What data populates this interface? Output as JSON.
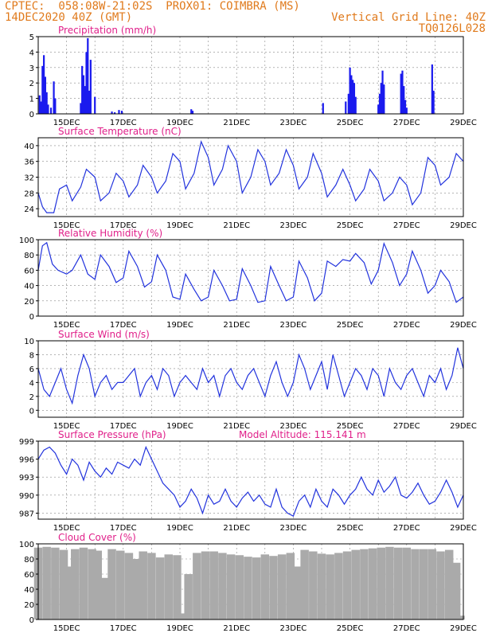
{
  "header": {
    "line1_left": "CPTEC:  058:08W-21:02S  PROX01: COIMBRA (MS)",
    "line2_left": "14DEC2020 40Z (GMT)",
    "line2_right": "Vertical Grid Line: 40Z",
    "line3_right": "TQ0126L028"
  },
  "colors": {
    "header_text": "#e07a1c",
    "panel_title": "#e0208a",
    "series_line": "#2233dd",
    "bars": "#1a1aee",
    "cloud_bars": "#aaaaaa"
  },
  "x_axis": {
    "tick_labels": [
      "15DEC",
      "17DEC",
      "19DEC",
      "21DEC",
      "23DEC",
      "25DEC",
      "27DEC",
      "29DEC"
    ],
    "tick_days": [
      15,
      17,
      19,
      21,
      23,
      25,
      27,
      29
    ],
    "x_range_days": [
      14.0,
      29.0
    ]
  },
  "chart_data": [
    {
      "type": "bar",
      "title": "Precipitation (mm/h)",
      "ylim": [
        0,
        5
      ],
      "yticks": [
        "0",
        "1",
        "2",
        "3",
        "4",
        "5"
      ],
      "points": [
        [
          14.05,
          1.2
        ],
        [
          14.1,
          0.8
        ],
        [
          14.15,
          3.1
        ],
        [
          14.2,
          3.8
        ],
        [
          14.25,
          2.4
        ],
        [
          14.3,
          1.4
        ],
        [
          14.35,
          0.6
        ],
        [
          14.45,
          0.4
        ],
        [
          14.55,
          2.1
        ],
        [
          14.6,
          1.0
        ],
        [
          15.5,
          0.7
        ],
        [
          15.55,
          3.1
        ],
        [
          15.6,
          2.5
        ],
        [
          15.65,
          1.8
        ],
        [
          15.7,
          4.0
        ],
        [
          15.75,
          4.9
        ],
        [
          15.8,
          1.5
        ],
        [
          15.85,
          3.5
        ],
        [
          16.0,
          1.1
        ],
        [
          16.6,
          0.15
        ],
        [
          16.7,
          0.1
        ],
        [
          16.85,
          0.25
        ],
        [
          16.95,
          0.2
        ],
        [
          19.4,
          0.3
        ],
        [
          19.45,
          0.2
        ],
        [
          24.05,
          0.7
        ],
        [
          24.85,
          0.8
        ],
        [
          24.95,
          1.3
        ],
        [
          25.0,
          3.0
        ],
        [
          25.05,
          2.5
        ],
        [
          25.1,
          2.2
        ],
        [
          25.15,
          2.0
        ],
        [
          25.2,
          1.1
        ],
        [
          26.0,
          0.6
        ],
        [
          26.05,
          1.3
        ],
        [
          26.1,
          2.0
        ],
        [
          26.15,
          2.8
        ],
        [
          26.2,
          1.9
        ],
        [
          26.8,
          2.6
        ],
        [
          26.85,
          2.8
        ],
        [
          26.9,
          1.8
        ],
        [
          26.95,
          0.9
        ],
        [
          27.0,
          0.4
        ],
        [
          27.9,
          3.2
        ],
        [
          27.95,
          1.5
        ]
      ]
    },
    {
      "type": "line",
      "title": "Surface Temperature (nC)",
      "ylim": [
        22,
        42
      ],
      "yticks": [
        "24",
        "28",
        "32",
        "36",
        "40"
      ],
      "x": [
        14.0,
        14.15,
        14.3,
        14.55,
        14.75,
        15.0,
        15.2,
        15.5,
        15.7,
        16.0,
        16.2,
        16.5,
        16.75,
        17.0,
        17.2,
        17.5,
        17.7,
        18.0,
        18.2,
        18.5,
        18.75,
        19.0,
        19.2,
        19.5,
        19.75,
        20.0,
        20.2,
        20.5,
        20.7,
        21.0,
        21.2,
        21.5,
        21.75,
        22.0,
        22.2,
        22.5,
        22.75,
        23.0,
        23.2,
        23.5,
        23.7,
        24.0,
        24.2,
        24.5,
        24.75,
        25.0,
        25.2,
        25.5,
        25.7,
        26.0,
        26.2,
        26.5,
        26.75,
        27.0,
        27.2,
        27.5,
        27.75,
        28.0,
        28.2,
        28.5,
        28.75,
        29.0
      ],
      "y": [
        28,
        24.5,
        23,
        23,
        29,
        30,
        26,
        29.5,
        34,
        32,
        26,
        28,
        33,
        31,
        27,
        30,
        35,
        32,
        28,
        31,
        38,
        36,
        29,
        33,
        41,
        37,
        30,
        34,
        40,
        36,
        28,
        32,
        39,
        36,
        30,
        33,
        39,
        35,
        29,
        32,
        38,
        33,
        27,
        30,
        34,
        30,
        26,
        29,
        34,
        31,
        26,
        28,
        32,
        30,
        25,
        28,
        37,
        35,
        30,
        32,
        38,
        36
      ]
    },
    {
      "type": "line",
      "title": "Relative Humidity (%)",
      "ylim": [
        0,
        100
      ],
      "yticks": [
        "0",
        "20",
        "40",
        "60",
        "80",
        "100"
      ],
      "x": [
        14.0,
        14.15,
        14.3,
        14.5,
        14.7,
        15.0,
        15.2,
        15.5,
        15.75,
        16.0,
        16.2,
        16.5,
        16.75,
        17.0,
        17.2,
        17.5,
        17.75,
        18.0,
        18.2,
        18.5,
        18.75,
        19.0,
        19.2,
        19.5,
        19.75,
        20.0,
        20.2,
        20.5,
        20.75,
        21.0,
        21.2,
        21.5,
        21.75,
        22.0,
        22.2,
        22.5,
        22.75,
        23.0,
        23.2,
        23.5,
        23.75,
        24.0,
        24.2,
        24.5,
        24.75,
        25.0,
        25.2,
        25.5,
        25.75,
        26.0,
        26.2,
        26.5,
        26.75,
        27.0,
        27.2,
        27.5,
        27.75,
        28.0,
        28.2,
        28.5,
        28.75,
        29.0
      ],
      "y": [
        60,
        92,
        96,
        68,
        60,
        55,
        60,
        80,
        55,
        48,
        80,
        65,
        44,
        50,
        85,
        65,
        38,
        45,
        80,
        60,
        25,
        22,
        55,
        35,
        20,
        25,
        60,
        40,
        20,
        22,
        62,
        40,
        18,
        20,
        65,
        40,
        20,
        25,
        72,
        50,
        20,
        30,
        72,
        65,
        74,
        72,
        82,
        70,
        42,
        60,
        95,
        70,
        40,
        55,
        85,
        60,
        30,
        40,
        60,
        45,
        18,
        25
      ]
    },
    {
      "type": "line",
      "title": "Surface Wind (m/s)",
      "ylim": [
        -1,
        10
      ],
      "yticks": [
        "0",
        "2",
        "4",
        "6",
        "8",
        "10"
      ],
      "x": [
        14.0,
        14.2,
        14.4,
        14.6,
        14.8,
        15.0,
        15.2,
        15.4,
        15.6,
        15.8,
        16.0,
        16.2,
        16.4,
        16.6,
        16.8,
        17.0,
        17.2,
        17.4,
        17.6,
        17.8,
        18.0,
        18.2,
        18.4,
        18.6,
        18.8,
        19.0,
        19.2,
        19.4,
        19.6,
        19.8,
        20.0,
        20.2,
        20.4,
        20.6,
        20.8,
        21.0,
        21.2,
        21.4,
        21.6,
        21.8,
        22.0,
        22.2,
        22.4,
        22.6,
        22.8,
        23.0,
        23.2,
        23.4,
        23.6,
        23.8,
        24.0,
        24.2,
        24.4,
        24.6,
        24.8,
        25.0,
        25.2,
        25.4,
        25.6,
        25.8,
        26.0,
        26.2,
        26.4,
        26.6,
        26.8,
        27.0,
        27.2,
        27.4,
        27.6,
        27.8,
        28.0,
        28.2,
        28.4,
        28.6,
        28.8,
        29.0
      ],
      "y": [
        6,
        3,
        2,
        4,
        6,
        3,
        1,
        5,
        8,
        6,
        2,
        4,
        5,
        3,
        4,
        4,
        5,
        6,
        2,
        4,
        5,
        3,
        6,
        5,
        2,
        4,
        5,
        4,
        3,
        6,
        4,
        5,
        2,
        5,
        6,
        4,
        3,
        5,
        6,
        4,
        2,
        5,
        7,
        4,
        2,
        4,
        8,
        6,
        3,
        5,
        7,
        3,
        8,
        5,
        2,
        4,
        6,
        5,
        3,
        6,
        5,
        2,
        6,
        4,
        3,
        5,
        6,
        4,
        2,
        5,
        4,
        6,
        3,
        5,
        9,
        6
      ]
    },
    {
      "type": "line",
      "title": "Surface Pressure (hPa)",
      "subtitle": "Model Altitude: 115.141  m",
      "ylim": [
        986,
        999
      ],
      "yticks": [
        "987",
        "990",
        "993",
        "996",
        "999"
      ],
      "x": [
        14.0,
        14.2,
        14.4,
        14.6,
        14.8,
        15.0,
        15.2,
        15.4,
        15.6,
        15.8,
        16.0,
        16.2,
        16.4,
        16.6,
        16.8,
        17.0,
        17.2,
        17.4,
        17.6,
        17.8,
        18.0,
        18.2,
        18.4,
        18.6,
        18.8,
        19.0,
        19.2,
        19.4,
        19.6,
        19.8,
        20.0,
        20.2,
        20.4,
        20.6,
        20.8,
        21.0,
        21.2,
        21.4,
        21.6,
        21.8,
        22.0,
        22.2,
        22.4,
        22.6,
        22.8,
        23.0,
        23.2,
        23.4,
        23.6,
        23.8,
        24.0,
        24.2,
        24.4,
        24.6,
        24.8,
        25.0,
        25.2,
        25.4,
        25.6,
        25.8,
        26.0,
        26.2,
        26.4,
        26.6,
        26.8,
        27.0,
        27.2,
        27.4,
        27.6,
        27.8,
        28.0,
        28.2,
        28.4,
        28.6,
        28.8,
        29.0
      ],
      "y": [
        996,
        997.5,
        998,
        997,
        995,
        993.5,
        996,
        995,
        992.5,
        995.5,
        994,
        993,
        994.5,
        993.5,
        995.5,
        995,
        994.5,
        996,
        995,
        998,
        996,
        994,
        992,
        991,
        990,
        988,
        989,
        991,
        989.5,
        987,
        990,
        988.5,
        989,
        991,
        989,
        988,
        989.5,
        990.5,
        989,
        990,
        988.5,
        988,
        991,
        988,
        987,
        986.5,
        989,
        990,
        988,
        991,
        989,
        988,
        991,
        990,
        988.5,
        990,
        991,
        993,
        991,
        990,
        992.5,
        990.5,
        991.5,
        993,
        990,
        989.5,
        990.5,
        992,
        990,
        988.5,
        989,
        990.5,
        992.5,
        990.5,
        988,
        990
      ]
    },
    {
      "type": "bar",
      "title": "Cloud Cover (%)",
      "ylim": [
        0,
        100
      ],
      "yticks": [
        "0",
        "20",
        "40",
        "60",
        "80",
        "100"
      ],
      "points": [
        [
          14.0,
          95
        ],
        [
          14.3,
          96
        ],
        [
          14.6,
          95
        ],
        [
          14.9,
          92
        ],
        [
          15.1,
          70
        ],
        [
          15.3,
          93
        ],
        [
          15.6,
          95
        ],
        [
          15.9,
          93
        ],
        [
          16.1,
          91
        ],
        [
          16.35,
          55
        ],
        [
          16.6,
          93
        ],
        [
          16.9,
          91
        ],
        [
          17.2,
          88
        ],
        [
          17.45,
          80
        ],
        [
          17.7,
          90
        ],
        [
          18.0,
          88
        ],
        [
          18.3,
          82
        ],
        [
          18.6,
          86
        ],
        [
          18.9,
          85
        ],
        [
          19.1,
          8
        ],
        [
          19.3,
          60
        ],
        [
          19.6,
          88
        ],
        [
          19.9,
          90
        ],
        [
          20.2,
          90
        ],
        [
          20.5,
          88
        ],
        [
          20.8,
          86
        ],
        [
          21.1,
          85
        ],
        [
          21.4,
          83
        ],
        [
          21.7,
          82
        ],
        [
          22.0,
          86
        ],
        [
          22.3,
          84
        ],
        [
          22.6,
          86
        ],
        [
          22.9,
          88
        ],
        [
          23.15,
          70
        ],
        [
          23.4,
          92
        ],
        [
          23.7,
          90
        ],
        [
          24.0,
          87
        ],
        [
          24.3,
          86
        ],
        [
          24.6,
          88
        ],
        [
          24.9,
          90
        ],
        [
          25.2,
          92
        ],
        [
          25.5,
          93
        ],
        [
          25.8,
          94
        ],
        [
          26.1,
          95
        ],
        [
          26.4,
          96
        ],
        [
          26.7,
          95
        ],
        [
          27.0,
          95
        ],
        [
          27.3,
          93
        ],
        [
          27.6,
          93
        ],
        [
          27.9,
          93
        ],
        [
          28.2,
          90
        ],
        [
          28.5,
          92
        ],
        [
          28.75,
          75
        ],
        [
          28.9,
          5
        ]
      ]
    }
  ]
}
